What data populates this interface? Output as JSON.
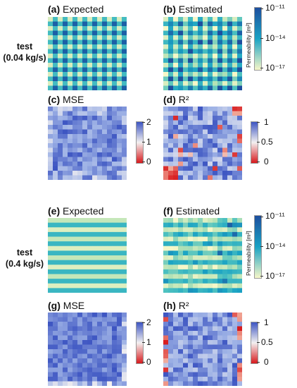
{
  "rows": [
    {
      "label_line1": "test",
      "label_line2": "(0.04 kg/s)"
    },
    {
      "label_line1": "test",
      "label_line2": "(0.4 kg/s)"
    }
  ],
  "panels": [
    {
      "tag": "(a)",
      "title": "Expected"
    },
    {
      "tag": "(b)",
      "title": "Estimated"
    },
    {
      "tag": "(c)",
      "title": "MSE"
    },
    {
      "tag": "(d)",
      "title": "R²"
    },
    {
      "tag": "(e)",
      "title": "Expected"
    },
    {
      "tag": "(f)",
      "title": "Estimated"
    },
    {
      "tag": "(g)",
      "title": "MSE"
    },
    {
      "tag": "(h)",
      "title": "R²"
    }
  ],
  "colorbars": {
    "permeability": {
      "title": "Permeability [m²]",
      "ticks": [
        "10⁻¹¹",
        "10⁻¹⁴",
        "10⁻¹⁷"
      ],
      "colors": [
        "#1d4e9e",
        "#1aa3c4",
        "#f6f7c8"
      ]
    },
    "mse": {
      "ticks": [
        "2",
        "1",
        "0"
      ],
      "colors": [
        "#3d55c2",
        "#f3f0f0",
        "#d7191c"
      ]
    },
    "r2": {
      "ticks": [
        "1",
        "0.5",
        "0"
      ],
      "colors": [
        "#3d55c2",
        "#f3f0f0",
        "#d7191c"
      ]
    }
  },
  "chart_data": [
    {
      "type": "heatmap",
      "panel": "(a)",
      "title": "Expected",
      "pattern": "checkerboard",
      "grid": [
        16,
        16
      ],
      "colorbar": "Permeability [m²]",
      "range": [
        "1e-17",
        "1e-11"
      ]
    },
    {
      "type": "heatmap",
      "panel": "(b)",
      "title": "Estimated",
      "pattern": "checkerboard",
      "grid": [
        16,
        16
      ],
      "colorbar": "Permeability [m²]",
      "range": [
        "1e-17",
        "1e-11"
      ]
    },
    {
      "type": "heatmap",
      "panel": "(c)",
      "title": "MSE",
      "grid": [
        16,
        16
      ],
      "range": [
        0,
        2
      ]
    },
    {
      "type": "heatmap",
      "panel": "(d)",
      "title": "R²",
      "grid": [
        16,
        16
      ],
      "range": [
        0,
        1
      ]
    },
    {
      "type": "heatmap",
      "panel": "(e)",
      "title": "Expected",
      "pattern": "horizontal stripes",
      "grid": [
        16,
        16
      ],
      "colorbar": "Permeability [m²]",
      "range": [
        "1e-17",
        "1e-11"
      ]
    },
    {
      "type": "heatmap",
      "panel": "(f)",
      "title": "Estimated",
      "pattern": "horizontal stripes",
      "grid": [
        16,
        16
      ],
      "colorbar": "Permeability [m²]",
      "range": [
        "1e-17",
        "1e-11"
      ]
    },
    {
      "type": "heatmap",
      "panel": "(g)",
      "title": "MSE",
      "grid": [
        16,
        16
      ],
      "range": [
        0,
        2
      ]
    },
    {
      "type": "heatmap",
      "panel": "(h)",
      "title": "R²",
      "grid": [
        16,
        16
      ],
      "range": [
        0,
        1
      ]
    }
  ]
}
